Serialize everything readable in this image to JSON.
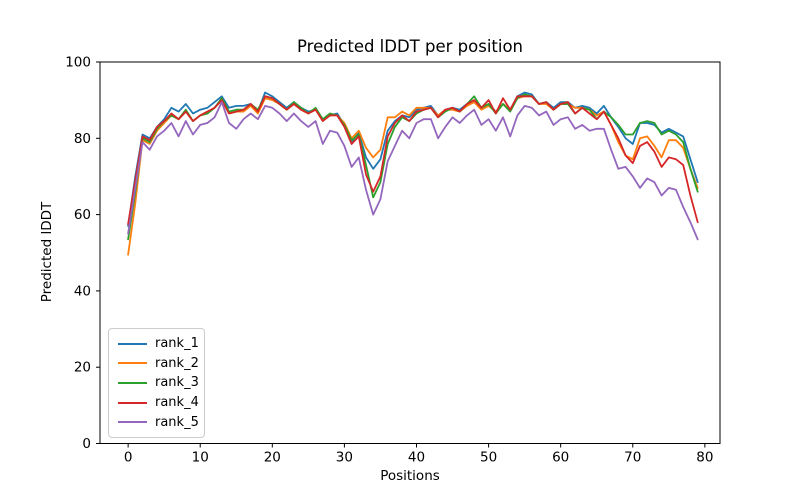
{
  "figure": {
    "title": "Predicted lDDT per position",
    "xlabel": "Positions",
    "ylabel": "Predicted lDDT"
  },
  "chart_data": {
    "type": "line",
    "title": "Predicted lDDT per position",
    "xlabel": "Positions",
    "ylabel": "Predicted lDDT",
    "xlim": [
      -3.9,
      82.1
    ],
    "ylim": [
      0,
      100
    ],
    "x_ticks": [
      0,
      10,
      20,
      30,
      40,
      50,
      60,
      70,
      80
    ],
    "y_ticks": [
      0,
      20,
      40,
      60,
      80,
      100
    ],
    "grid": false,
    "legend_position": "lower left",
    "x": [
      0,
      1,
      2,
      3,
      4,
      5,
      6,
      7,
      8,
      9,
      10,
      11,
      12,
      13,
      14,
      15,
      16,
      17,
      18,
      19,
      20,
      21,
      22,
      23,
      24,
      25,
      26,
      27,
      28,
      29,
      30,
      31,
      32,
      33,
      34,
      35,
      36,
      37,
      38,
      39,
      40,
      41,
      42,
      43,
      44,
      45,
      46,
      47,
      48,
      49,
      50,
      51,
      52,
      53,
      54,
      55,
      56,
      57,
      58,
      59,
      60,
      61,
      62,
      63,
      64,
      65,
      66,
      67,
      68,
      69,
      70,
      71,
      72,
      73,
      74,
      75,
      76,
      77,
      78,
      79
    ],
    "series": [
      {
        "name": "rank_1",
        "color": "#1f77b4",
        "values": [
          57,
          70,
          81,
          80,
          83,
          85,
          88,
          87,
          89,
          86.5,
          87.5,
          88,
          89.5,
          91,
          88,
          88.5,
          88.5,
          89,
          87,
          92,
          91,
          89.5,
          88,
          89.5,
          88,
          87,
          87.5,
          85,
          86,
          86.5,
          83.5,
          79,
          81.5,
          75,
          72,
          74.5,
          82,
          84.5,
          86,
          85.5,
          87.5,
          88,
          88.5,
          86,
          87.5,
          88,
          87.5,
          89,
          89.5,
          88,
          89,
          87,
          89,
          87.5,
          91,
          92,
          91.5,
          89,
          89.5,
          88,
          89.5,
          89.5,
          88,
          88.5,
          88,
          86.5,
          88.5,
          85.5,
          83,
          80,
          78.5,
          84,
          84,
          83.5,
          81.5,
          82.5,
          81.5,
          80.5,
          74.5,
          68.5
        ]
      },
      {
        "name": "rank_2",
        "color": "#ff7f0e",
        "values": [
          49.5,
          63,
          79.5,
          78.5,
          82,
          84,
          86,
          85,
          87,
          84.5,
          86,
          86.5,
          88,
          90,
          86.5,
          87,
          87,
          88.5,
          86.5,
          90.5,
          90,
          89,
          87.5,
          89,
          87.5,
          86.5,
          87.5,
          85,
          86,
          86,
          84,
          80,
          82,
          77.5,
          75,
          77,
          85.5,
          85.5,
          87,
          86,
          88,
          88,
          88,
          86,
          87.5,
          87.5,
          87,
          88.5,
          89.5,
          87.5,
          88.5,
          87,
          89,
          87.5,
          90.5,
          91,
          91,
          89,
          89,
          87.5,
          89,
          89,
          88,
          88,
          87.5,
          86,
          87,
          83.5,
          79,
          75.5,
          74.5,
          80,
          80.5,
          78,
          75,
          79.5,
          79.5,
          77.5,
          72,
          67
        ]
      },
      {
        "name": "rank_3",
        "color": "#2ca02c",
        "values": [
          53.5,
          66,
          80,
          79,
          82.5,
          84.5,
          86,
          85,
          87.5,
          84.5,
          86,
          86.5,
          88,
          90.5,
          87,
          87.5,
          87.5,
          89,
          87.5,
          91,
          90.5,
          89,
          87.5,
          89.5,
          88,
          86.5,
          88,
          85,
          86.5,
          86,
          83.5,
          79.5,
          81,
          73,
          64.5,
          68.5,
          78.5,
          83,
          85.5,
          84.5,
          86.5,
          87.5,
          88,
          85.5,
          87,
          88,
          87,
          89,
          91,
          88,
          89,
          86.5,
          89,
          87,
          90.5,
          91.5,
          91,
          89,
          89.5,
          87.5,
          89,
          89,
          86.5,
          88,
          87.5,
          85,
          87,
          85.5,
          83.5,
          81,
          81,
          84,
          84.5,
          84,
          81,
          82,
          81,
          79,
          72,
          66
        ]
      },
      {
        "name": "rank_4",
        "color": "#d62728",
        "values": [
          57.5,
          69,
          80.5,
          79.5,
          83,
          84.5,
          86.5,
          85,
          87,
          84.5,
          86,
          87,
          88,
          90,
          86.5,
          87,
          87.5,
          89,
          87,
          91,
          90.5,
          89,
          87.5,
          89,
          87.5,
          86.5,
          87.5,
          84.5,
          86,
          86,
          83,
          78.5,
          80.5,
          70.5,
          66,
          70,
          80.5,
          84,
          86,
          84.5,
          87,
          87.5,
          88,
          85.5,
          87.5,
          88,
          87,
          89,
          90,
          88,
          90,
          86.5,
          90.5,
          87.5,
          91,
          91,
          91,
          89,
          89.5,
          87.5,
          89,
          89.5,
          86.5,
          88,
          86.5,
          85,
          87,
          83.5,
          80,
          75.5,
          73.5,
          78,
          79,
          76.5,
          72.5,
          75,
          74.5,
          73,
          65,
          58
        ]
      },
      {
        "name": "rank_5",
        "color": "#9467bd",
        "values": [
          55,
          67,
          79,
          77,
          80.5,
          82,
          84,
          80.5,
          84.5,
          81,
          83.5,
          84,
          85.5,
          89.5,
          84,
          82.5,
          85,
          86.5,
          85,
          88.5,
          88,
          86.5,
          84.5,
          86.5,
          84.5,
          83,
          84.5,
          78.5,
          82,
          81.5,
          78,
          72.5,
          75,
          66.5,
          60,
          64,
          74,
          78,
          82,
          80,
          84,
          85,
          85,
          80,
          83,
          85.5,
          84,
          86,
          87.5,
          83.5,
          85,
          82,
          85.5,
          80.5,
          86,
          88.5,
          88,
          86,
          87,
          83.5,
          85,
          85.5,
          82.5,
          83.5,
          82,
          82.5,
          82.5,
          77,
          72,
          72.5,
          70,
          67,
          69.5,
          68.5,
          65,
          67,
          66.5,
          62,
          58,
          53.5
        ]
      }
    ]
  }
}
